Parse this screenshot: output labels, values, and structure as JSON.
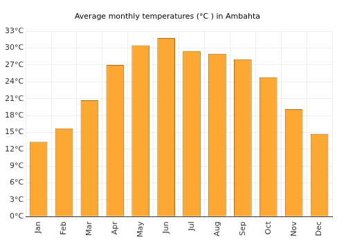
{
  "chart_data": {
    "type": "bar",
    "title": "Average monthly temperatures (°C ) in Ambahta",
    "categories": [
      "Jan",
      "Feb",
      "Mar",
      "Apr",
      "May",
      "Jun",
      "Jul",
      "Aug",
      "Sep",
      "Oct",
      "Nov",
      "Dec"
    ],
    "values": [
      13.3,
      15.7,
      20.7,
      27.0,
      30.5,
      31.8,
      29.5,
      29.0,
      28.0,
      24.8,
      19.1,
      14.7
    ],
    "color": "#fca832",
    "ylim": [
      0,
      33
    ],
    "yticks": [
      {
        "value": 0,
        "label": "0°C"
      },
      {
        "value": 3,
        "label": "3°C"
      },
      {
        "value": 6,
        "label": "6°C"
      },
      {
        "value": 9,
        "label": "9°C"
      },
      {
        "value": 12,
        "label": "12°C"
      },
      {
        "value": 15,
        "label": "15°C"
      },
      {
        "value": 18,
        "label": "18°C"
      },
      {
        "value": 21,
        "label": "21°C"
      },
      {
        "value": 24,
        "label": "24°C"
      },
      {
        "value": 27,
        "label": "27°C"
      },
      {
        "value": 30,
        "label": "30°C"
      },
      {
        "value": 33,
        "label": "33°C"
      }
    ],
    "grid": true
  }
}
